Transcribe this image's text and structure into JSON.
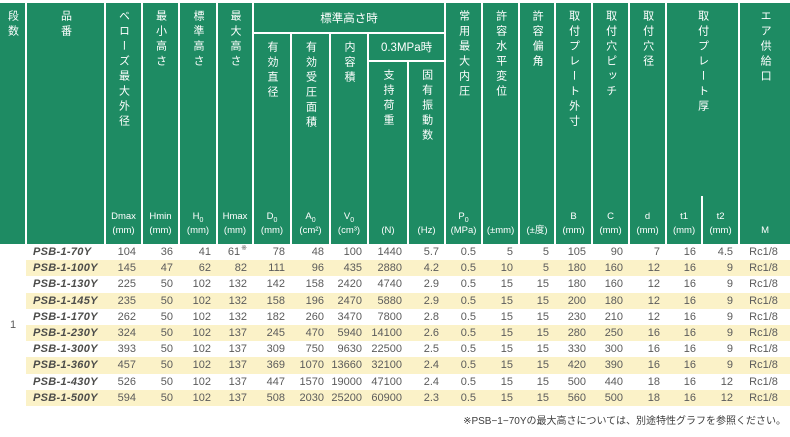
{
  "colors": {
    "header_green": "#1e8b63",
    "row_stripe_yellow": "#fbf2c8",
    "row_white": "#ffffff",
    "data_text": "#5b5b5b",
    "header_text": "#ffffff"
  },
  "header": {
    "stage": "段数",
    "part": "品番",
    "bellows_max_od": "ベローズ最大外径",
    "min_height": "最小高さ",
    "std_height": "標準高さ",
    "max_height": "最大高さ",
    "at_std_height": "標準高さ時",
    "effective_diameter": "有効直径",
    "effective_pressure_area": "有効受圧面積",
    "internal_volume": "内容積",
    "at_03mpa": "0.3MPa時",
    "support_load": "支持荷重",
    "natural_frequency": "固有振動数",
    "max_internal_pressure": "常用最大内圧",
    "allowable_horizontal_displacement": "許容水平変位",
    "allowable_deflection_angle": "許容偏角",
    "mounting_plate_outer": "取付プレート外寸",
    "mounting_hole_pitch": "取付穴ピッチ",
    "mounting_hole_diameter": "取付穴径",
    "mounting_plate_thickness": "取付プレート厚",
    "air_supply_port": "エア供給口",
    "units": [
      {
        "sym": "Dmax",
        "sub": "",
        "unit": "(mm)"
      },
      {
        "sym": "Hmin",
        "sub": "",
        "unit": "(mm)"
      },
      {
        "sym": "H",
        "sub": "0",
        "unit": "(mm)"
      },
      {
        "sym": "Hmax",
        "sub": "",
        "unit": "(mm)"
      },
      {
        "sym": "D",
        "sub": "0",
        "unit": "(mm)"
      },
      {
        "sym": "A",
        "sub": "0",
        "unit": "(cm²)"
      },
      {
        "sym": "V",
        "sub": "0",
        "unit": "(cm³)"
      },
      {
        "sym": "",
        "sub": "",
        "unit": "(N)"
      },
      {
        "sym": "",
        "sub": "",
        "unit": "(Hz)"
      },
      {
        "sym": "P",
        "sub": "0",
        "unit": "(MPa)"
      },
      {
        "sym": "",
        "sub": "",
        "unit": "(±mm)"
      },
      {
        "sym": "",
        "sub": "",
        "unit": "(±度)"
      },
      {
        "sym": "B",
        "sub": "",
        "unit": "(mm)"
      },
      {
        "sym": "C",
        "sub": "",
        "unit": "(mm)"
      },
      {
        "sym": "d",
        "sub": "",
        "unit": "(mm)"
      },
      {
        "sym": "t1",
        "sub": "",
        "unit": "(mm)"
      },
      {
        "sym": "t2",
        "sub": "",
        "unit": "(mm)"
      },
      {
        "sym": "",
        "sub": "",
        "unit": "M"
      }
    ]
  },
  "table": {
    "stage_value": "1",
    "rows": [
      {
        "part": "PSB-1-70Y",
        "note_col": 3,
        "note_mark": "※",
        "values": [
          "104",
          "36",
          "41",
          "61",
          "78",
          "48",
          "100",
          "1440",
          "5.7",
          "0.5",
          "5",
          "5",
          "105",
          "90",
          "7",
          "16",
          "4.5",
          "Rc1/8"
        ]
      },
      {
        "part": "PSB-1-100Y",
        "values": [
          "145",
          "47",
          "62",
          "82",
          "111",
          "96",
          "435",
          "2880",
          "4.2",
          "0.5",
          "10",
          "5",
          "180",
          "160",
          "12",
          "16",
          "9",
          "Rc1/8"
        ]
      },
      {
        "part": "PSB-1-130Y",
        "values": [
          "225",
          "50",
          "102",
          "132",
          "142",
          "158",
          "2420",
          "4740",
          "2.9",
          "0.5",
          "15",
          "15",
          "180",
          "160",
          "12",
          "16",
          "9",
          "Rc1/8"
        ]
      },
      {
        "part": "PSB-1-145Y",
        "values": [
          "235",
          "50",
          "102",
          "132",
          "158",
          "196",
          "2470",
          "5880",
          "2.9",
          "0.5",
          "15",
          "15",
          "200",
          "180",
          "12",
          "16",
          "9",
          "Rc1/8"
        ]
      },
      {
        "part": "PSB-1-170Y",
        "values": [
          "262",
          "50",
          "102",
          "132",
          "182",
          "260",
          "3470",
          "7800",
          "2.8",
          "0.5",
          "15",
          "15",
          "230",
          "210",
          "12",
          "16",
          "9",
          "Rc1/8"
        ]
      },
      {
        "part": "PSB-1-230Y",
        "values": [
          "324",
          "50",
          "102",
          "137",
          "245",
          "470",
          "5940",
          "14100",
          "2.6",
          "0.5",
          "15",
          "15",
          "280",
          "250",
          "16",
          "16",
          "9",
          "Rc1/8"
        ]
      },
      {
        "part": "PSB-1-300Y",
        "values": [
          "393",
          "50",
          "102",
          "137",
          "309",
          "750",
          "9630",
          "22500",
          "2.5",
          "0.5",
          "15",
          "15",
          "330",
          "300",
          "16",
          "16",
          "9",
          "Rc1/8"
        ]
      },
      {
        "part": "PSB-1-360Y",
        "values": [
          "457",
          "50",
          "102",
          "137",
          "369",
          "1070",
          "13660",
          "32100",
          "2.4",
          "0.5",
          "15",
          "15",
          "420",
          "390",
          "16",
          "16",
          "9",
          "Rc1/8"
        ]
      },
      {
        "part": "PSB-1-430Y",
        "values": [
          "526",
          "50",
          "102",
          "137",
          "447",
          "1570",
          "19000",
          "47100",
          "2.4",
          "0.5",
          "15",
          "15",
          "500",
          "440",
          "18",
          "16",
          "12",
          "Rc1/8"
        ]
      },
      {
        "part": "PSB-1-500Y",
        "values": [
          "594",
          "50",
          "102",
          "137",
          "508",
          "2030",
          "25200",
          "60900",
          "2.3",
          "0.5",
          "15",
          "15",
          "560",
          "500",
          "18",
          "16",
          "12",
          "Rc1/8"
        ]
      }
    ]
  },
  "footnote": "※PSB−1−70Yの最大高さについては、別途特性グラフを参照ください。"
}
